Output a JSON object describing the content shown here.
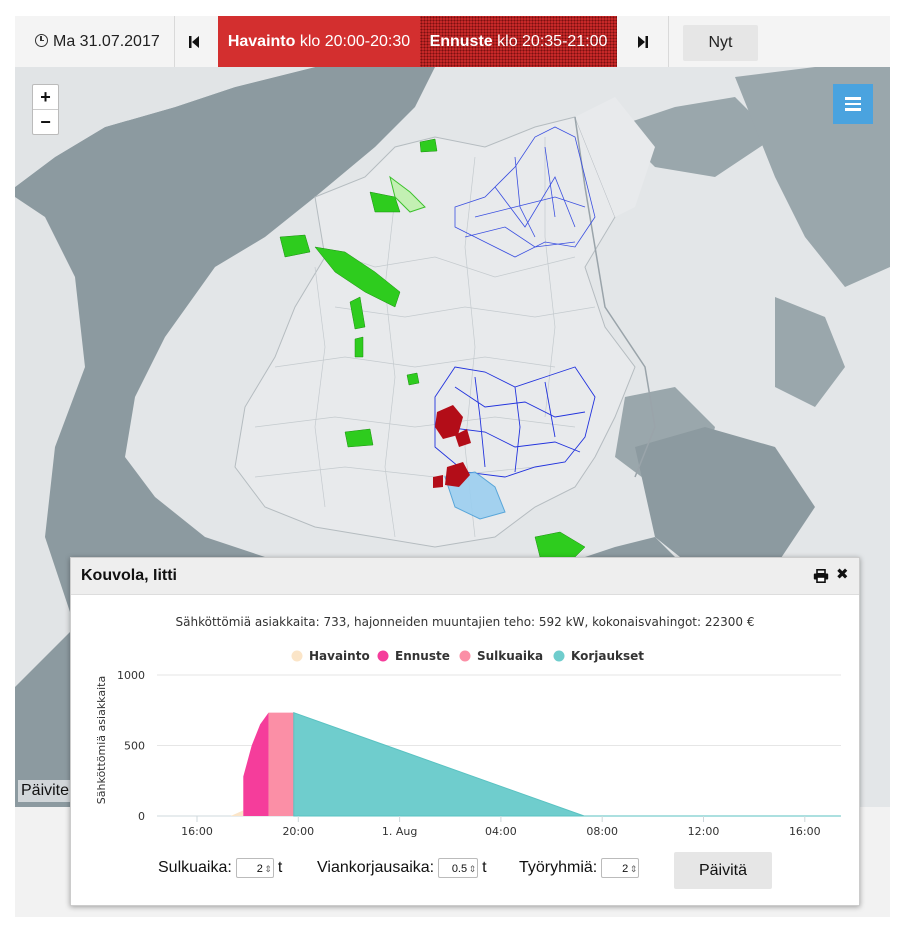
{
  "topbar": {
    "date": "Ma 31.07.2017",
    "observation_bold": "Havainto",
    "observation_time": " klo 20:00-20:30",
    "forecast_bold": "Ennuste",
    "forecast_time": " klo 20:35-21:00",
    "now_label": "Nyt"
  },
  "map": {
    "zoom_in": "+",
    "zoom_out": "−",
    "status_text": "Päivite"
  },
  "popup": {
    "title": "Kouvola, Iitti",
    "summary": "Sähköttömiä asiakkaita: 733, hajonneiden muuntajien teho: 592 kW, kokonaisvahingot: 22300 €",
    "controls": {
      "closing_label": "Sulkuaika:",
      "closing_value": "2",
      "closing_unit": "t",
      "repair_label": "Viankorjausaika:",
      "repair_value": "0.5",
      "repair_unit": "t",
      "crews_label": "Työryhmiä:",
      "crews_value": "2",
      "update_label": "Päivitä"
    }
  },
  "colors": {
    "observation": "#fbe5c8",
    "forecast": "#f53d9b",
    "closing": "#fb8fa6",
    "repairs": "#6fcdcd",
    "timeline_red": "#d32f2f"
  },
  "chart_data": {
    "type": "area",
    "ylabel": "Sähköttömiä asiakkaita",
    "ylim": [
      0,
      1000
    ],
    "yticks": [
      0,
      500,
      1000
    ],
    "xticks": [
      "16:00",
      "20:00",
      "1. Aug",
      "04:00",
      "08:00",
      "12:00",
      "16:00"
    ],
    "legend_position": "top-center",
    "series": [
      {
        "name": "Havainto",
        "points": [
          [
            "17:20",
            0
          ],
          [
            "17:50",
            40
          ],
          [
            "17:50",
            0
          ]
        ]
      },
      {
        "name": "Ennuste",
        "points": [
          [
            "17:50",
            0
          ],
          [
            "17:50",
            280
          ],
          [
            "18:10",
            500
          ],
          [
            "18:30",
            650
          ],
          [
            "18:50",
            733
          ],
          [
            "18:50",
            0
          ]
        ]
      },
      {
        "name": "Sulkuaika",
        "points": [
          [
            "18:50",
            733
          ],
          [
            "19:50",
            733
          ]
        ]
      },
      {
        "name": "Korjaukset",
        "points": [
          [
            "19:50",
            733
          ],
          [
            "07:20",
            0
          ],
          [
            "17:30",
            0
          ]
        ]
      }
    ]
  }
}
